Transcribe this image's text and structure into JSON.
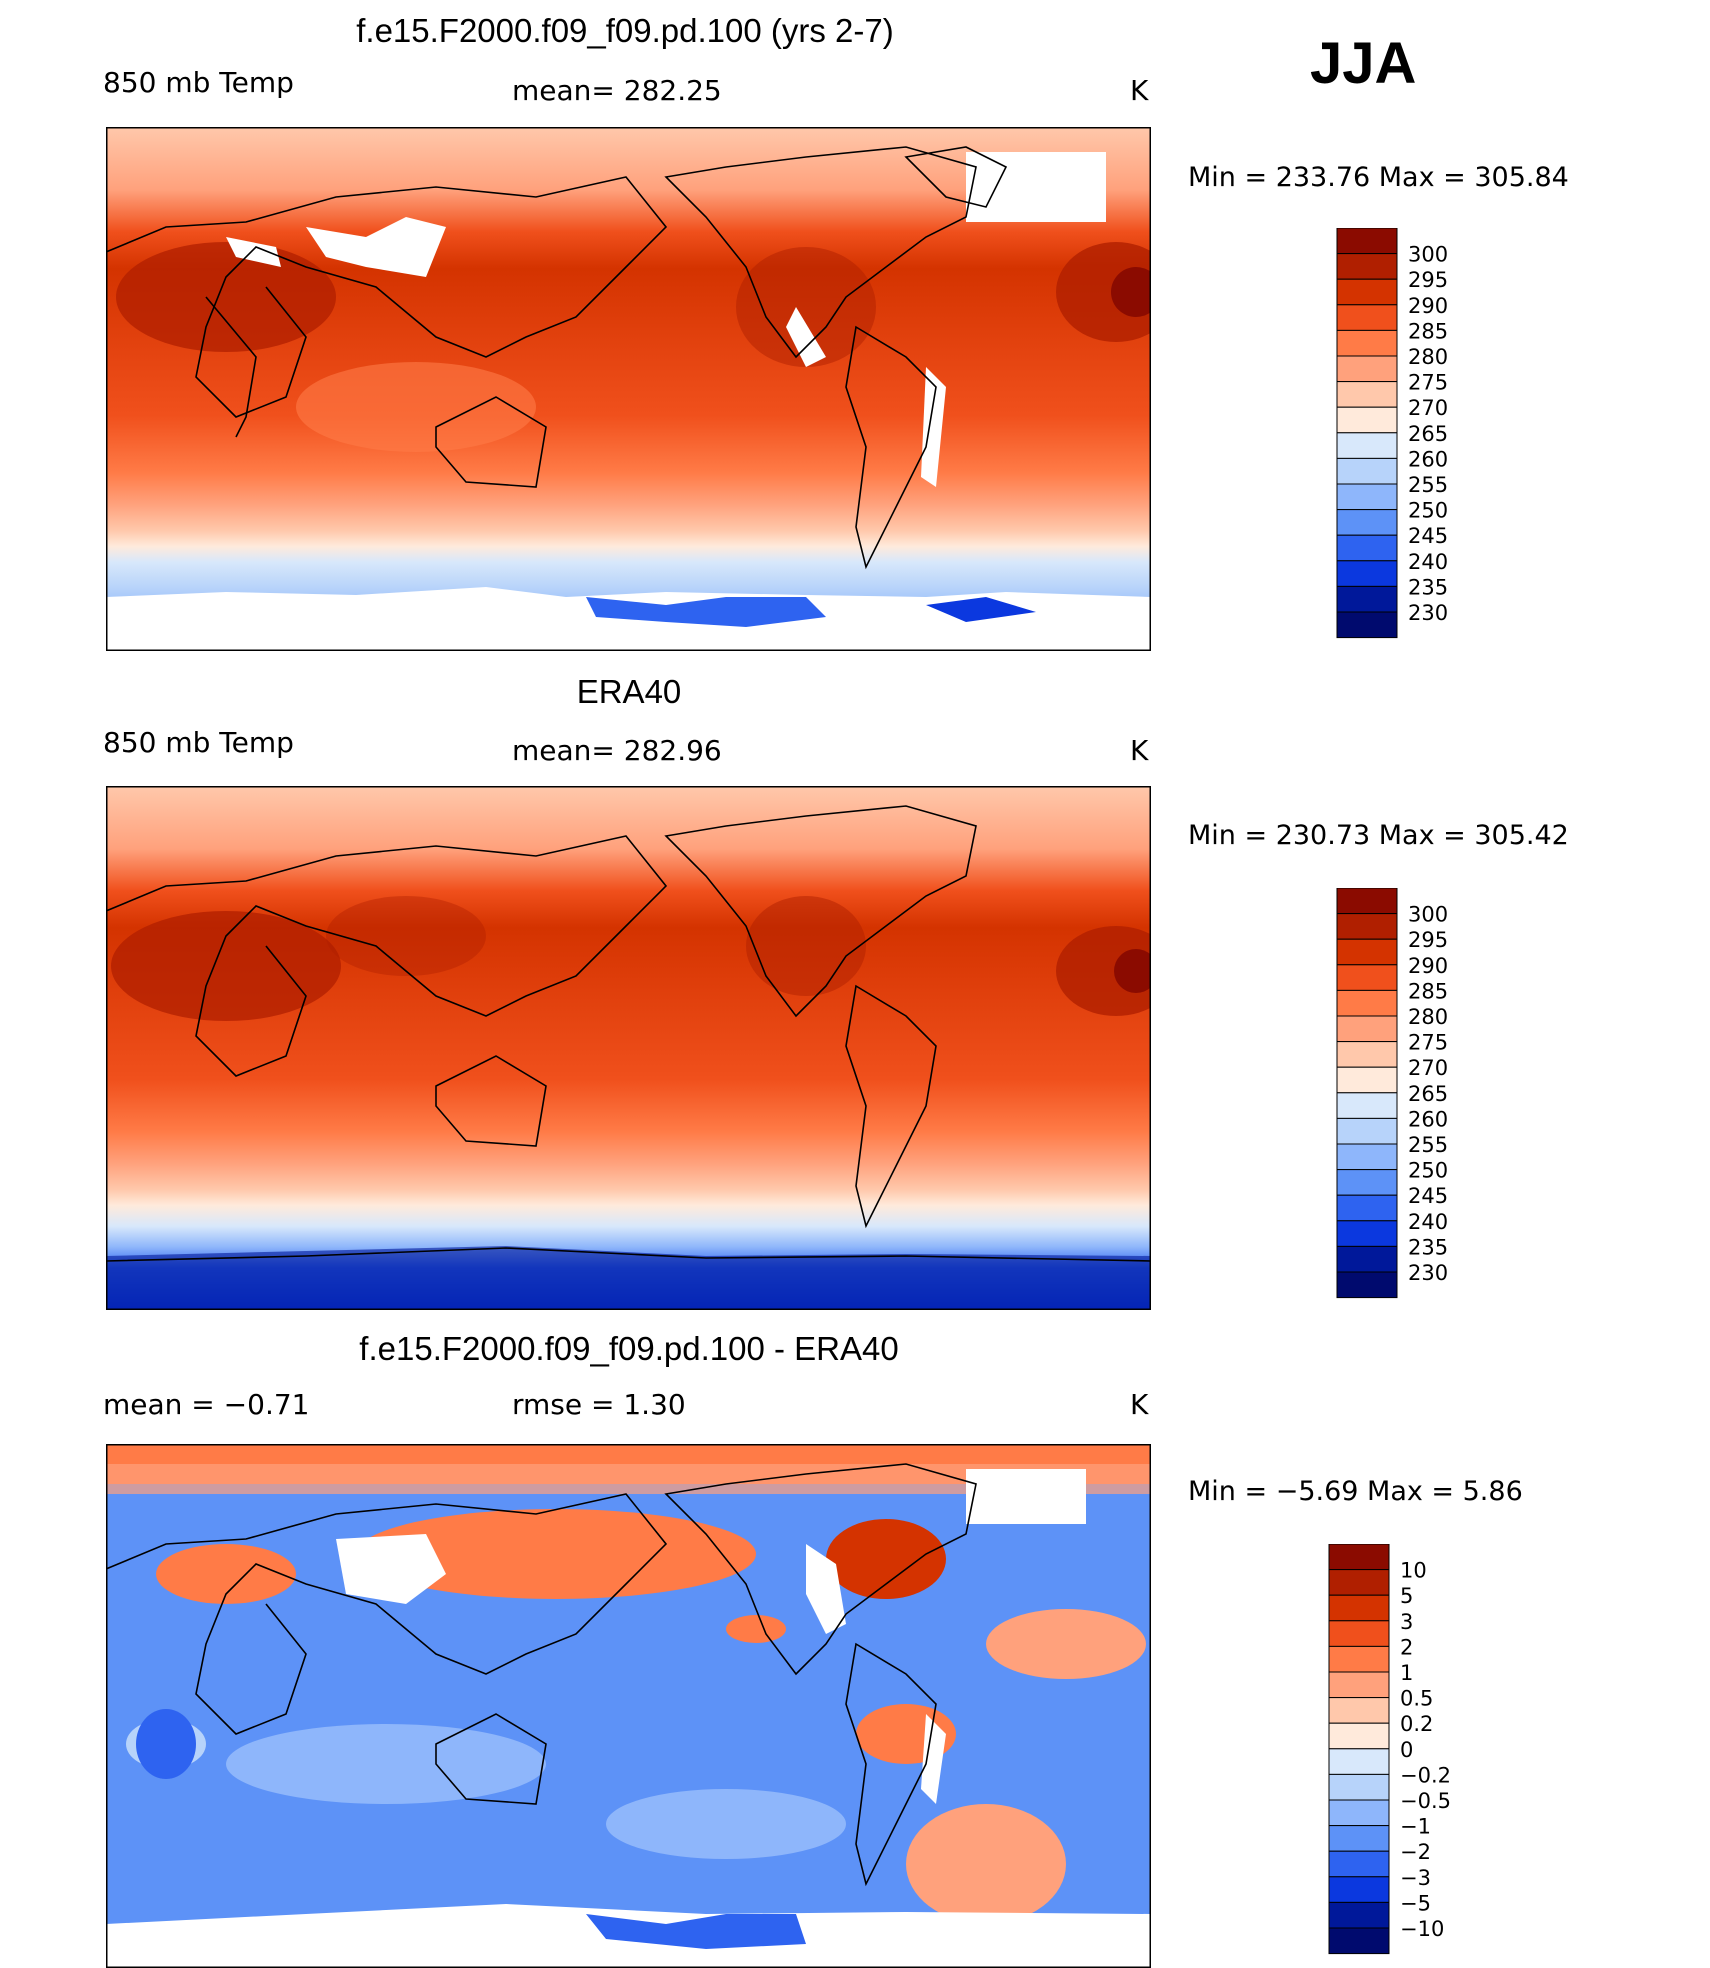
{
  "season": "JJA",
  "units": "K",
  "panels": [
    {
      "title": "f.e15.F2000.f09_f09.pd.100 (yrs 2-7)",
      "left_label": "850 mb Temp",
      "center_label": "mean=  282.25",
      "right_label": "K",
      "min_max": "Min  =  233.76  Max  =  305.84",
      "map_description": "model 850 mb temperature"
    },
    {
      "title": "ERA40",
      "left_label": "850 mb Temp",
      "center_label": "mean=  282.96",
      "right_label": "K",
      "min_max": "Min  =  230.73  Max  =  305.42",
      "map_description": "reanalysis 850 mb temperature"
    },
    {
      "title": "f.e15.F2000.f09_f09.pd.100 - ERA40",
      "left_label": "mean  =    −0.71",
      "center_label": "rmse  =     1.30",
      "right_label": "K",
      "min_max": "Min  =    −5.69  Max  =       5.86",
      "map_description": "difference map"
    }
  ],
  "legend_abs": {
    "labels": [
      "300",
      "295",
      "290",
      "285",
      "280",
      "275",
      "270",
      "265",
      "260",
      "255",
      "250",
      "245",
      "240",
      "235",
      "230"
    ],
    "colors": [
      "#8b0b00",
      "#b01f00",
      "#d43300",
      "#f0501c",
      "#ff7b47",
      "#ffa17c",
      "#ffc8ab",
      "#ffeadb",
      "#d8e8fb",
      "#b7d3fa",
      "#8eb6fb",
      "#5d92f7",
      "#2e63f0",
      "#0b38df",
      "#00189a",
      "#000a6e"
    ]
  },
  "legend_diff": {
    "labels": [
      "10",
      "5",
      "3",
      "2",
      "1",
      "0.5",
      "0.2",
      "0",
      "−0.2",
      "−0.5",
      "−1",
      "−2",
      "−3",
      "−5",
      "−10"
    ],
    "colors": [
      "#8b0b00",
      "#b01f00",
      "#d43300",
      "#f0501c",
      "#ff7b47",
      "#ffa17c",
      "#ffc8ab",
      "#ffeadb",
      "#d8e8fb",
      "#b7d3fa",
      "#8eb6fb",
      "#5d92f7",
      "#2e63f0",
      "#0b38df",
      "#00189a",
      "#000a6e"
    ]
  }
}
